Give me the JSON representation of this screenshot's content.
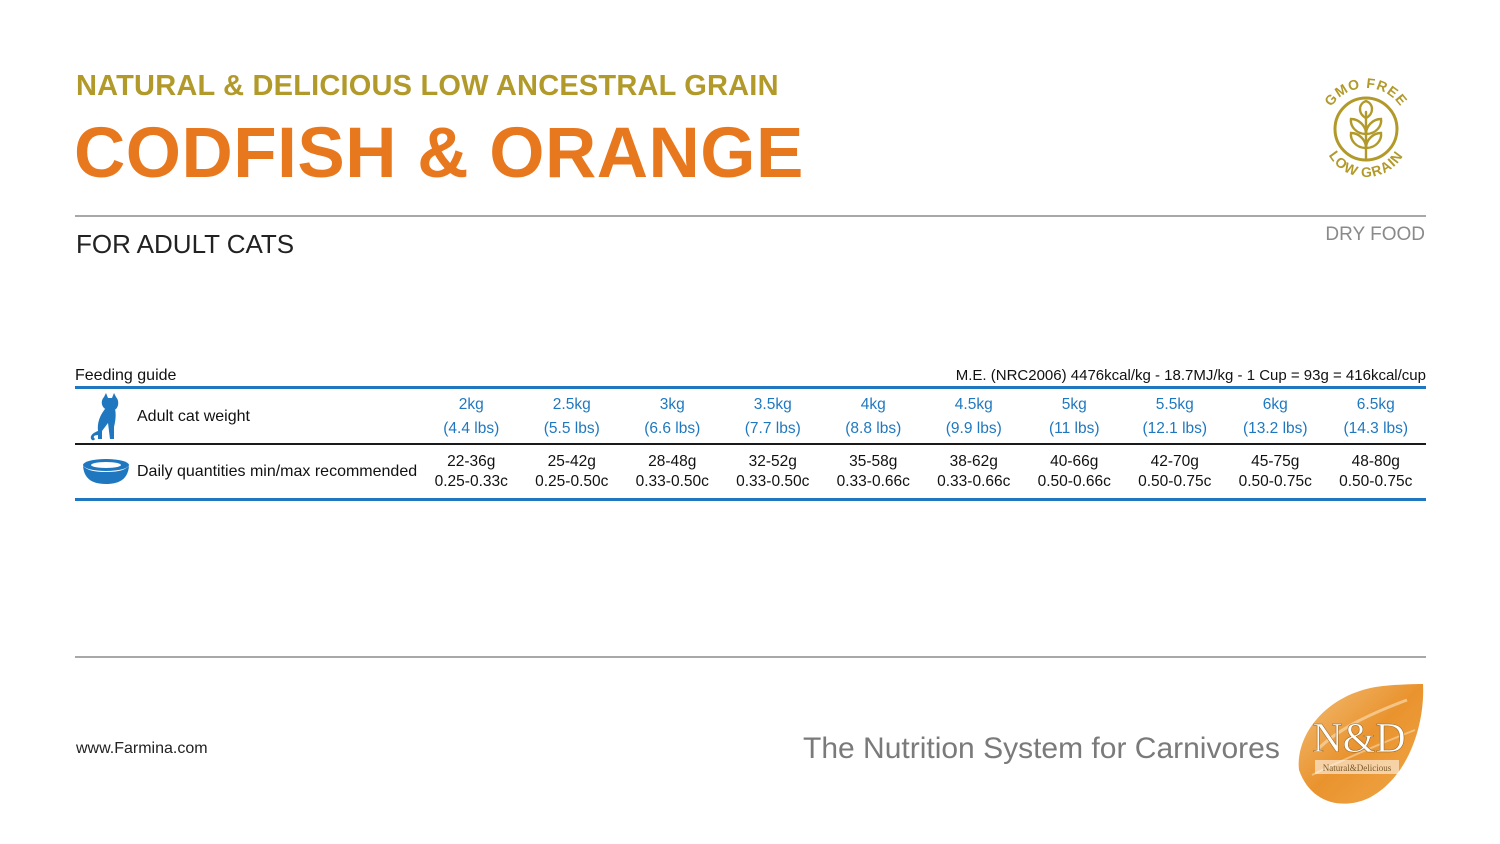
{
  "header": {
    "line": "NATURAL & DELICIOUS LOW ANCESTRAL GRAIN",
    "product": "CODFISH & ORANGE",
    "badge": {
      "top_text": "GMO FREE",
      "bottom_text": "LOW GRAIN",
      "icon": "wheat-icon",
      "color": "#b29a2a"
    }
  },
  "audience": "FOR ADULT CATS",
  "food_type": "DRY FOOD",
  "feeding_guide": {
    "title": "Feeding guide",
    "energy": "M.E. (NRC2006) 4476kcal/kg - 18.7MJ/kg - 1 Cup = 93g = 416kcal/cup",
    "weight_row": {
      "label": "Adult cat weight",
      "icon": "cat-icon",
      "cells": [
        {
          "kg": "2kg",
          "lbs": "(4.4 lbs)"
        },
        {
          "kg": "2.5kg",
          "lbs": "(5.5 lbs)"
        },
        {
          "kg": "3kg",
          "lbs": "(6.6 lbs)"
        },
        {
          "kg": "3.5kg",
          "lbs": "(7.7 lbs)"
        },
        {
          "kg": "4kg",
          "lbs": "(8.8 lbs)"
        },
        {
          "kg": "4.5kg",
          "lbs": "(9.9 lbs)"
        },
        {
          "kg": "5kg",
          "lbs": "(11 lbs)"
        },
        {
          "kg": "5.5kg",
          "lbs": "(12.1 lbs)"
        },
        {
          "kg": "6kg",
          "lbs": "(13.2 lbs)"
        },
        {
          "kg": "6.5kg",
          "lbs": "(14.3 lbs)"
        }
      ]
    },
    "quantity_row": {
      "label": "Daily quantities min/max recommended",
      "icon": "bowl-icon",
      "cells": [
        {
          "grams": "22-36g",
          "cups": "0.25-0.33c"
        },
        {
          "grams": "25-42g",
          "cups": "0.25-0.50c"
        },
        {
          "grams": "28-48g",
          "cups": "0.33-0.50c"
        },
        {
          "grams": "32-52g",
          "cups": "0.33-0.50c"
        },
        {
          "grams": "35-58g",
          "cups": "0.33-0.66c"
        },
        {
          "grams": "38-62g",
          "cups": "0.33-0.66c"
        },
        {
          "grams": "40-66g",
          "cups": "0.50-0.66c"
        },
        {
          "grams": "42-70g",
          "cups": "0.50-0.75c"
        },
        {
          "grams": "45-75g",
          "cups": "0.50-0.75c"
        },
        {
          "grams": "48-80g",
          "cups": "0.50-0.75c"
        }
      ]
    }
  },
  "footer": {
    "website": "www.Farmina.com",
    "tagline": "The Nutrition System for Carnivores",
    "logo": {
      "text": "N&D",
      "small_text": "Natural&Delicious"
    }
  },
  "colors": {
    "gold": "#b29a2a",
    "orange": "#e8781e",
    "blue": "#1f78bf",
    "grey": "#7a7a7a"
  }
}
